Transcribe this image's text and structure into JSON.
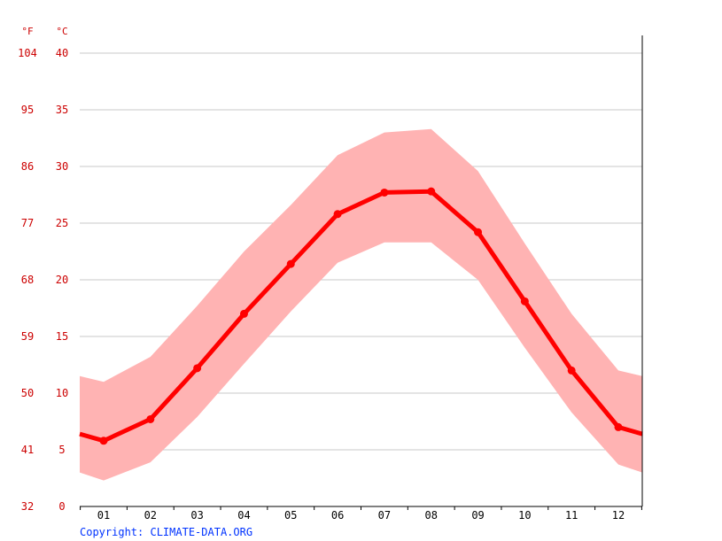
{
  "chart_data": {
    "type": "line",
    "unit_labels": {
      "fahrenheit": "°F",
      "celsius": "°C"
    },
    "categories": [
      "01",
      "02",
      "03",
      "04",
      "05",
      "06",
      "07",
      "08",
      "09",
      "10",
      "11",
      "12"
    ],
    "y_ticks_celsius": [
      "0",
      "5",
      "10",
      "15",
      "20",
      "25",
      "30",
      "35",
      "40"
    ],
    "y_ticks_fahrenheit": [
      "32",
      "41",
      "50",
      "59",
      "68",
      "77",
      "86",
      "95",
      "104"
    ],
    "ylim": [
      0,
      40
    ],
    "grid": true,
    "series": [
      {
        "values": [
          5.8,
          7.7,
          12.2,
          17.0,
          21.4,
          25.8,
          27.7,
          27.8,
          24.2,
          18.1,
          12.0,
          7.0
        ]
      }
    ],
    "band": {
      "max": [
        11.0,
        13.2,
        17.7,
        22.5,
        26.6,
        31.0,
        33.0,
        33.3,
        29.6,
        23.2,
        17.0,
        12.0
      ],
      "min": [
        2.3,
        3.9,
        7.9,
        12.6,
        17.2,
        21.5,
        23.3,
        23.3,
        20.0,
        14.0,
        8.3,
        3.7
      ]
    },
    "edge_values": {
      "mean_left": 6.4,
      "mean_right": 6.4,
      "max_left": 11.5,
      "max_right": 11.5,
      "min_left": 3.0,
      "min_right": 3.0
    },
    "colors": {
      "line": "#ff0000",
      "band": "#ffb3b3",
      "tick_labels": "#cc0000",
      "grid": "#c8c8c8",
      "axis": "#000000",
      "month_labels": "#000000"
    }
  },
  "footer": {
    "copyright": "Copyright: CLIMATE-DATA.ORG",
    "copyright_color": "#0033ff"
  }
}
